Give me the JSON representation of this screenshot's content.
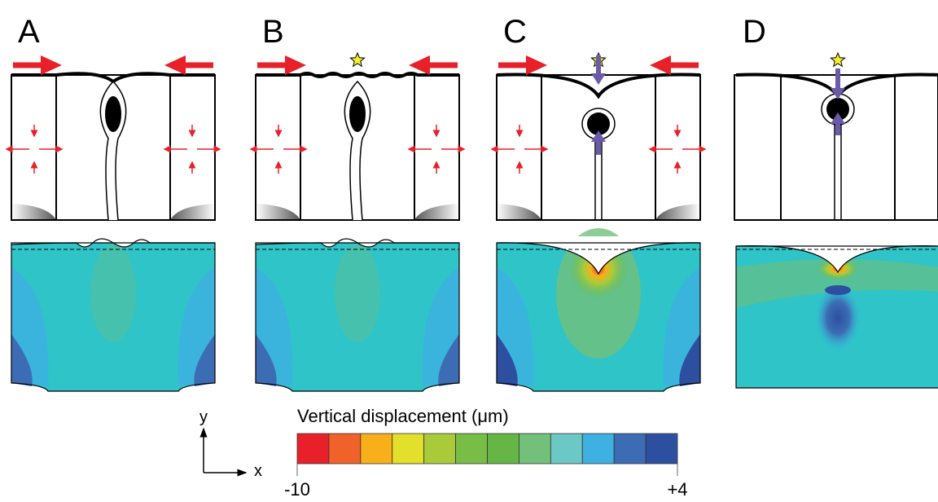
{
  "panels": [
    {
      "label": "A"
    },
    {
      "label": "B"
    },
    {
      "label": "C"
    },
    {
      "label": "D"
    }
  ],
  "axes": {
    "y": "y",
    "x": "x"
  },
  "colorbar": {
    "title": "Vertical displacement (μm)",
    "min_label": "-10",
    "max_label": "+4",
    "colors": [
      "#e8202a",
      "#f0622a",
      "#f8b01a",
      "#e2e02a",
      "#a9cb3a",
      "#78bd45",
      "#66b646",
      "#72c07a",
      "#6cc8c4",
      "#3eb0e2",
      "#3c6db4",
      "#2d4fa0"
    ]
  }
}
